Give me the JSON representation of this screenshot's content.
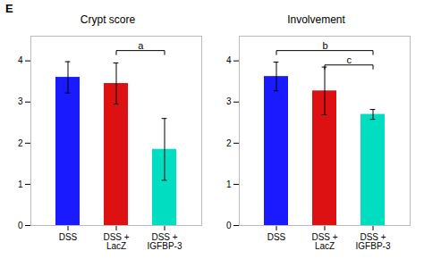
{
  "chart_data": [
    {
      "type": "bar",
      "title": "Crypt score",
      "categories": [
        "DSS",
        "DSS +\nLacZ",
        "DSS +\nIGFBP-3"
      ],
      "values": [
        3.6,
        3.45,
        1.85
      ],
      "errors": [
        0.38,
        0.5,
        0.75
      ],
      "colors": [
        "#1a1aff",
        "#dd1111",
        "#00ddc0"
      ],
      "ylim": [
        0,
        4.6
      ],
      "yticks": [
        0,
        1,
        2,
        3,
        4
      ],
      "grid": false,
      "annotations": [
        {
          "text": "E"
        },
        {
          "text": "a",
          "x1": "DSS +\nLacZ",
          "x2": "DSS +\nIGFBP-3",
          "y": 4.25
        }
      ]
    },
    {
      "type": "bar",
      "title": "Involvement",
      "categories": [
        "DSS",
        "DSS +\nLacZ",
        "DSS +\nIGFBP-3"
      ],
      "values": [
        3.62,
        3.27,
        2.7
      ],
      "errors": [
        0.35,
        0.58,
        0.12
      ],
      "colors": [
        "#1a1aff",
        "#dd1111",
        "#00ddc0"
      ],
      "ylim": [
        0,
        4.6
      ],
      "yticks": [
        0,
        1,
        2,
        3,
        4
      ],
      "grid": false,
      "annotations": [
        {
          "text": "b",
          "x1": "DSS",
          "x2": "DSS +\nIGFBP-3",
          "y": 4.25
        },
        {
          "text": "c",
          "x1": "DSS +\nLacZ",
          "x2": "DSS +\nIGFBP-3",
          "y": 3.9
        }
      ]
    }
  ]
}
